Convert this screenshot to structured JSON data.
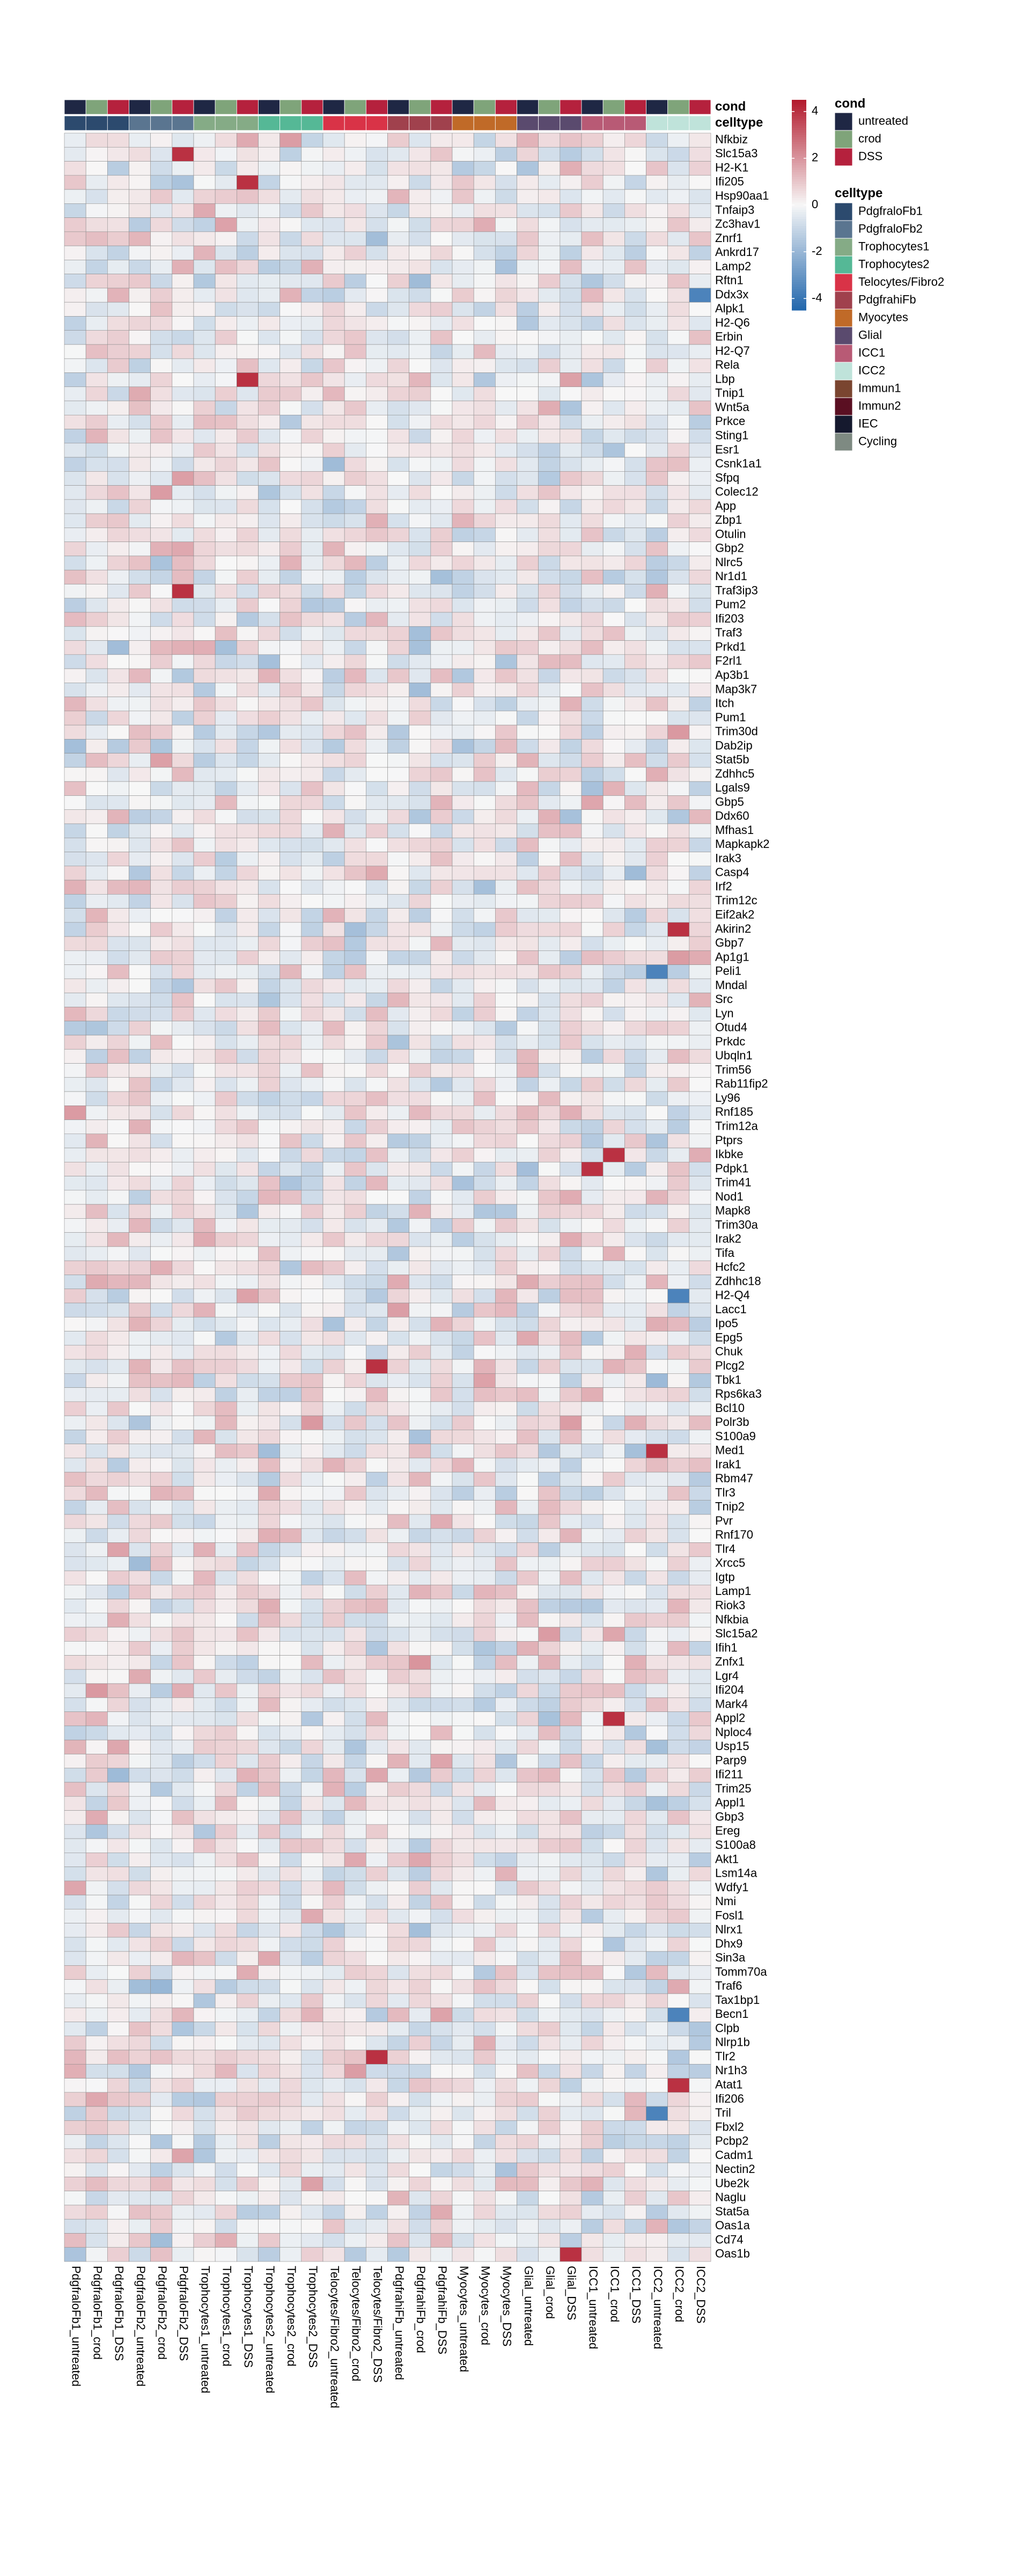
{
  "chart_data": {
    "type": "heatmap",
    "columns": [
      "PdgfraloFb1_untreated",
      "PdgfraloFb1_crod",
      "PdgfraloFb1_DSS",
      "PdgfraloFb2_untreated",
      "PdgfraloFb2_crod",
      "PdgfraloFb2_DSS",
      "Trophocytes1_untreated",
      "Trophocytes1_crod",
      "Trophocytes1_DSS",
      "Trophocytes2_untreated",
      "Trophocytes2_crod",
      "Trophocytes2_DSS",
      "Telocytes/Fibro2_untreated",
      "Telocytes/Fibro2_crod",
      "Telocytes/Fibro2_DSS",
      "PdgfrahiFb_untreated",
      "PdgfrahiFb_crod",
      "PdgfrahiFb_DSS",
      "Myocytes_untreated",
      "Myocytes_crod",
      "Myocytes_DSS",
      "Glial_untreated",
      "Glial_crod",
      "Glial_DSS",
      "ICC1_untreated",
      "ICC1_crod",
      "ICC1_DSS",
      "ICC2_untreated",
      "ICC2_crod",
      "ICC2_DSS"
    ],
    "rows": [
      "Nfkbiz",
      "Slc15a3",
      "H2-K1",
      "Ifi205",
      "Hsp90aa1",
      "Tnfaip3",
      "Zc3hav1",
      "Znrf1",
      "Ankrd17",
      "Lamp2",
      "Rftn1",
      "Ddx3x",
      "Alpk1",
      "H2-Q6",
      "Erbin",
      "H2-Q7",
      "Rela",
      "Lbp",
      "Tnip1",
      "Wnt5a",
      "Prkce",
      "Sting1",
      "Esr1",
      "Csnk1a1",
      "Sfpq",
      "Colec12",
      "App",
      "Zbp1",
      "Otulin",
      "Gbp2",
      "Nlrc5",
      "Nr1d1",
      "Traf3ip3",
      "Pum2",
      "Ifi203",
      "Traf3",
      "Prkd1",
      "F2rl1",
      "Ap3b1",
      "Map3k7",
      "Itch",
      "Pum1",
      "Trim30d",
      "Dab2ip",
      "Stat5b",
      "Zdhhc5",
      "Lgals9",
      "Gbp5",
      "Ddx60",
      "Mfhas1",
      "Mapkapk2",
      "Irak3",
      "Casp4",
      "Irf2",
      "Trim12c",
      "Eif2ak2",
      "Akirin2",
      "Gbp7",
      "Ap1g1",
      "Peli1",
      "Mndal",
      "Src",
      "Lyn",
      "Otud4",
      "Prkdc",
      "Ubqln1",
      "Trim56",
      "Rab11fip2",
      "Ly96",
      "Rnf185",
      "Trim12a",
      "Ptprs",
      "Ikbke",
      "Pdpk1",
      "Trim41",
      "Nod1",
      "Mapk8",
      "Trim30a",
      "Irak2",
      "Tifa",
      "Hcfc2",
      "Zdhhc18",
      "H2-Q4",
      "Lacc1",
      "Ipo5",
      "Epg5",
      "Chuk",
      "Plcg2",
      "Tbk1",
      "Rps6ka3",
      "Bcl10",
      "Polr3b",
      "S100a9",
      "Med1",
      "Irak1",
      "Rbm47",
      "Tlr3",
      "Tnip2",
      "Pvr",
      "Rnf170",
      "Tlr4",
      "Xrcc5",
      "Igtp",
      "Lamp1",
      "Riok3",
      "Nfkbia",
      "Slc15a2",
      "Ifih1",
      "Znfx1",
      "Lgr4",
      "Ifi204",
      "Mark4",
      "Appl2",
      "Nploc4",
      "Usp15",
      "Parp9",
      "Ifi211",
      "Trim25",
      "Appl1",
      "Gbp3",
      "Ereg",
      "S100a8",
      "Akt1",
      "Lsm14a",
      "Wdfy1",
      "Nmi",
      "Fosl1",
      "Nlrx1",
      "Dhx9",
      "Sin3a",
      "Tomm70a",
      "Traf6",
      "Tax1bp1",
      "Becn1",
      "Clpb",
      "Nlrp1b",
      "Tlr2",
      "Nr1h3",
      "Atat1",
      "Ifi206",
      "Tril",
      "Fbxl2",
      "Pcbp2",
      "Cadm1",
      "Nectin2",
      "Ube2k",
      "Naglu",
      "Stat5a",
      "Oas1a",
      "Cd74",
      "Oas1b"
    ],
    "value_range": [
      -4.5,
      4.5
    ],
    "colorbar_ticks": [
      4,
      2,
      0,
      -2,
      -4
    ],
    "colorscale": [
      "#2166ac",
      "#f7f7f7",
      "#b2182b"
    ],
    "cell_values": "z-scored expression per gene; individual cell values not printed in the figure",
    "annotations": {
      "cond": {
        "title": "cond",
        "levels": [
          {
            "label": "untreated",
            "color": "#1f2744"
          },
          {
            "label": "crod",
            "color": "#7fa47a"
          },
          {
            "label": "DSS",
            "color": "#b5213d"
          }
        ],
        "values": [
          "untreated",
          "crod",
          "DSS",
          "untreated",
          "crod",
          "DSS",
          "untreated",
          "crod",
          "DSS",
          "untreated",
          "crod",
          "DSS",
          "untreated",
          "crod",
          "DSS",
          "untreated",
          "crod",
          "DSS",
          "untreated",
          "crod",
          "DSS",
          "untreated",
          "crod",
          "DSS",
          "untreated",
          "crod",
          "DSS",
          "untreated",
          "crod",
          "DSS"
        ]
      },
      "celltype": {
        "title": "celltype",
        "levels": [
          {
            "label": "PdgfraloFb1",
            "color": "#2c4a6e"
          },
          {
            "label": "PdgfraloFb2",
            "color": "#5a7590"
          },
          {
            "label": "Trophocytes1",
            "color": "#85ab86"
          },
          {
            "label": "Trophocytes2",
            "color": "#55b896"
          },
          {
            "label": "Telocytes/Fibro2",
            "color": "#d93347"
          },
          {
            "label": "PdgfrahiFb",
            "color": "#a0414d"
          },
          {
            "label": "Myocytes",
            "color": "#c06a28"
          },
          {
            "label": "Glial",
            "color": "#5a4a6e"
          },
          {
            "label": "ICC1",
            "color": "#b85a75"
          },
          {
            "label": "ICC2",
            "color": "#bfe3da"
          },
          {
            "label": "Immun1",
            "color": "#7a4530"
          },
          {
            "label": "Immun2",
            "color": "#5a0f22"
          },
          {
            "label": "IEC",
            "color": "#15192e"
          },
          {
            "label": "Cycling",
            "color": "#7e8a82"
          }
        ],
        "values": [
          "PdgfraloFb1",
          "PdgfraloFb1",
          "PdgfraloFb1",
          "PdgfraloFb2",
          "PdgfraloFb2",
          "PdgfraloFb2",
          "Trophocytes1",
          "Trophocytes1",
          "Trophocytes1",
          "Trophocytes2",
          "Trophocytes2",
          "Trophocytes2",
          "Telocytes/Fibro2",
          "Telocytes/Fibro2",
          "Telocytes/Fibro2",
          "PdgfrahiFb",
          "PdgfrahiFb",
          "PdgfrahiFb",
          "Myocytes",
          "Myocytes",
          "Myocytes",
          "Glial",
          "Glial",
          "Glial",
          "ICC1",
          "ICC1",
          "ICC1",
          "ICC2",
          "ICC2",
          "ICC2"
        ]
      }
    },
    "notable_high_cells": [
      {
        "row": "Slc15a3",
        "column": "PdgfraloFb2_DSS"
      },
      {
        "row": "Ifi205",
        "column": "Trophocytes1_DSS"
      },
      {
        "row": "Lbp",
        "column": "Trophocytes1_DSS"
      },
      {
        "row": "Traf3ip3",
        "column": "PdgfraloFb2_DSS"
      },
      {
        "row": "Akirin2",
        "column": "ICC2_crod"
      },
      {
        "row": "Ikbke",
        "column": "ICC1_crod"
      },
      {
        "row": "Pdpk1",
        "column": "ICC1_untreated"
      },
      {
        "row": "Plcg2",
        "column": "Telocytes/Fibro2_DSS"
      },
      {
        "row": "Med1",
        "column": "ICC2_untreated"
      },
      {
        "row": "Appl2",
        "column": "ICC1_crod"
      },
      {
        "row": "Tlr2",
        "column": "Telocytes/Fibro2_DSS"
      },
      {
        "row": "Atat1",
        "column": "ICC2_crod"
      },
      {
        "row": "Oas1b",
        "column": "Glial_DSS"
      }
    ],
    "notable_low_cells": [
      {
        "row": "Ddx3x",
        "column": "ICC2_DSS"
      },
      {
        "row": "Peli1",
        "column": "ICC2_untreated"
      },
      {
        "row": "H2-Q4",
        "column": "ICC2_crod"
      },
      {
        "row": "Becn1",
        "column": "ICC2_crod"
      },
      {
        "row": "Tril",
        "column": "ICC2_untreated"
      }
    ],
    "legend_placement": "right"
  }
}
